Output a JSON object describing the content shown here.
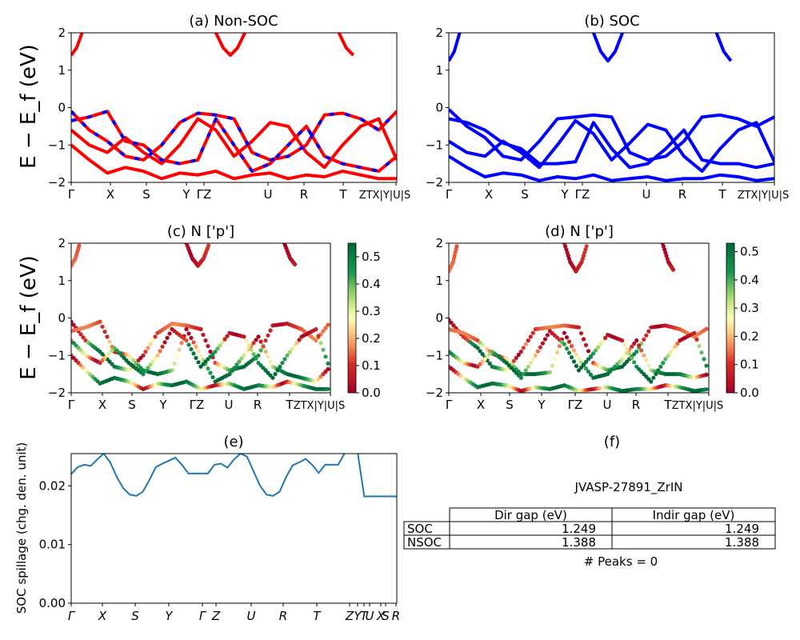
{
  "chart_data": [
    {
      "id": "a",
      "type": "line",
      "title": "(a) Non-SOC",
      "ylabel": "E − E_f (eV)",
      "ylim": [
        -2,
        2
      ],
      "yticks": [
        "−2",
        "−1",
        "0",
        "1",
        "2"
      ],
      "kpath_labels": [
        "Γ",
        "X",
        "S",
        "Y",
        "ΓZ",
        "U",
        "R",
        "T",
        "ZTX|Y|U|S"
      ],
      "legend": "none",
      "series": [
        {
          "color": "#ff0000",
          "style": "solid",
          "x": [
            0,
            0.5,
            1,
            1.5,
            2,
            2.5,
            3,
            3.5,
            4,
            4.5,
            5,
            5.5,
            6,
            6.5,
            7,
            7.5,
            8,
            8.5,
            9
          ],
          "y": [
            -0.1,
            -0.6,
            -0.9,
            -1.3,
            -1.4,
            -1.0,
            -0.4,
            -0.15,
            -0.2,
            -0.3,
            -1.2,
            -1.4,
            -1.3,
            -1.0,
            -0.2,
            -0.15,
            -0.3,
            -0.6,
            -0.1
          ]
        },
        {
          "color": "#ff0000",
          "style": "solid",
          "x": [
            0,
            0.5,
            1,
            1.5,
            2,
            2.5,
            3,
            3.5,
            4,
            4.5,
            5,
            5.5,
            6,
            6.5,
            7,
            7.5,
            8,
            8.5,
            9
          ],
          "y": [
            -0.35,
            -0.25,
            -0.1,
            -0.9,
            -1.0,
            -1.4,
            -1.5,
            -1.4,
            -0.3,
            -1.0,
            -1.7,
            -1.5,
            -1.0,
            -0.5,
            -1.3,
            -1.5,
            -1.6,
            -1.7,
            -1.3
          ]
        },
        {
          "color": "#ff0000",
          "style": "solid",
          "x": [
            0,
            0.5,
            1,
            1.5,
            2,
            2.5,
            3,
            3.5,
            4,
            4.5,
            5,
            5.5,
            6,
            6.5,
            7,
            7.5,
            8,
            8.5,
            9
          ],
          "y": [
            -0.6,
            -1.0,
            -1.2,
            -0.8,
            -1.2,
            -1.5,
            -1.0,
            -0.3,
            -0.6,
            -1.3,
            -0.9,
            -0.4,
            -0.5,
            -1.2,
            -1.6,
            -1.0,
            -0.5,
            -0.3,
            -1.4
          ]
        },
        {
          "color": "#ff0000",
          "style": "solid",
          "x": [
            0,
            0.5,
            1,
            1.5,
            2,
            2.5,
            3,
            3.5,
            4,
            4.5,
            5,
            5.5,
            6,
            6.5,
            7,
            7.5,
            8,
            8.5,
            9
          ],
          "y": [
            -1.0,
            -1.4,
            -1.75,
            -1.6,
            -1.7,
            -1.9,
            -1.75,
            -1.8,
            -1.7,
            -1.9,
            -1.8,
            -1.75,
            -1.9,
            -1.8,
            -1.85,
            -1.7,
            -1.8,
            -1.9,
            -1.9
          ]
        },
        {
          "color": "#ff0000",
          "style": "solid",
          "x": [
            4,
            4.2,
            4.4,
            4.6,
            4.8
          ],
          "y": [
            2.0,
            1.6,
            1.4,
            1.6,
            2.0
          ]
        },
        {
          "color": "#ff0000",
          "style": "solid",
          "x": [
            0,
            0.15,
            0.3
          ],
          "y": [
            1.4,
            1.6,
            2.0
          ]
        },
        {
          "color": "#ff0000",
          "style": "solid",
          "x": [
            7.4,
            7.6,
            7.8
          ],
          "y": [
            2.0,
            1.6,
            1.4
          ]
        },
        {
          "color": "#0000ff",
          "style": "dashed",
          "x": [
            0,
            0.5,
            1,
            1.5,
            2,
            2.5,
            3,
            3.5,
            4,
            4.5,
            5,
            5.5,
            6,
            6.5,
            7,
            7.5,
            8,
            8.5,
            9
          ],
          "y": [
            -0.1,
            -0.6,
            -0.9,
            -1.3,
            -1.4,
            -1.0,
            -0.4,
            -0.15,
            -0.2,
            -0.3,
            -1.2,
            -1.4,
            -1.3,
            -1.0,
            -0.2,
            -0.15,
            -0.3,
            -0.6,
            -0.1
          ]
        },
        {
          "color": "#0000ff",
          "style": "dashed",
          "x": [
            0,
            0.5,
            1,
            1.5,
            2,
            2.5,
            3,
            3.5,
            4,
            4.5,
            5,
            5.5,
            6,
            6.5,
            7,
            7.5,
            8,
            8.5,
            9
          ],
          "y": [
            -0.35,
            -0.25,
            -0.1,
            -0.9,
            -1.0,
            -1.4,
            -1.5,
            -1.4,
            -0.3,
            -1.0,
            -1.7,
            -1.5,
            -1.0,
            -0.5,
            -1.3,
            -1.5,
            -1.6,
            -1.7,
            -1.3
          ]
        }
      ]
    },
    {
      "id": "b",
      "type": "line",
      "title": "(b) SOC",
      "ylim": [
        -2,
        2
      ],
      "yticks": [
        "−2",
        "−1",
        "0",
        "1",
        "2"
      ],
      "kpath_labels": [
        "Γ",
        "X",
        "S",
        "Y",
        "ΓZ",
        "U",
        "R",
        "T",
        "ZTX|Y|U|S"
      ],
      "legend": "none",
      "series": [
        {
          "color": "#0000ff",
          "style": "solid",
          "x": [
            0,
            0.5,
            1,
            1.5,
            2,
            2.5,
            3,
            3.5,
            4,
            4.5,
            5,
            5.5,
            6,
            6.5,
            7,
            7.5,
            8,
            8.5,
            9
          ],
          "y": [
            -0.05,
            -0.5,
            -0.8,
            -1.3,
            -1.4,
            -0.9,
            -0.3,
            -0.25,
            -0.2,
            -0.25,
            -1.2,
            -1.4,
            -1.3,
            -0.9,
            -0.25,
            -0.2,
            -0.3,
            -0.5,
            -0.25
          ]
        },
        {
          "color": "#0000ff",
          "style": "solid",
          "x": [
            0,
            0.5,
            1,
            1.5,
            2,
            2.5,
            3,
            3.5,
            4,
            4.5,
            5,
            5.5,
            6,
            6.5,
            7,
            7.5,
            8,
            8.5,
            9
          ],
          "y": [
            -0.3,
            -0.4,
            -0.6,
            -0.95,
            -1.1,
            -1.5,
            -1.5,
            -1.45,
            -0.4,
            -1.1,
            -1.6,
            -1.5,
            -1.1,
            -0.6,
            -1.4,
            -1.5,
            -1.5,
            -1.6,
            -1.5
          ]
        },
        {
          "color": "#0000ff",
          "style": "solid",
          "x": [
            0,
            0.5,
            1,
            1.5,
            2,
            2.5,
            3,
            3.5,
            4,
            4.5,
            5,
            5.5,
            6,
            6.5,
            7,
            7.5,
            8,
            8.5,
            9
          ],
          "y": [
            -0.9,
            -1.2,
            -1.3,
            -0.9,
            -1.2,
            -1.6,
            -1.0,
            -0.35,
            -0.7,
            -1.4,
            -0.95,
            -0.45,
            -0.6,
            -1.3,
            -1.7,
            -1.1,
            -0.6,
            -0.4,
            -1.45
          ]
        },
        {
          "color": "#0000ff",
          "style": "solid",
          "x": [
            0,
            0.5,
            1,
            1.5,
            2,
            2.5,
            3,
            3.5,
            4,
            4.5,
            5,
            5.5,
            6,
            6.5,
            7,
            7.5,
            8,
            8.5,
            9
          ],
          "y": [
            -1.3,
            -1.6,
            -1.85,
            -1.75,
            -1.8,
            -1.95,
            -1.85,
            -1.9,
            -1.8,
            -1.95,
            -1.9,
            -1.85,
            -1.95,
            -1.9,
            -1.9,
            -1.8,
            -1.85,
            -1.95,
            -1.9
          ]
        },
        {
          "color": "#0000ff",
          "style": "solid",
          "x": [
            4,
            4.2,
            4.4,
            4.6,
            4.8
          ],
          "y": [
            2.0,
            1.5,
            1.25,
            1.5,
            2.0
          ]
        },
        {
          "color": "#0000ff",
          "style": "solid",
          "x": [
            0,
            0.15,
            0.3
          ],
          "y": [
            1.25,
            1.5,
            2.0
          ]
        },
        {
          "color": "#0000ff",
          "style": "solid",
          "x": [
            7.4,
            7.6,
            7.8
          ],
          "y": [
            2.0,
            1.5,
            1.25
          ]
        }
      ]
    },
    {
      "id": "c",
      "type": "scatter",
      "title": "(c)  N ['p']",
      "ylabel": "E − E_f (eV)",
      "ylim": [
        -2,
        2
      ],
      "yticks": [
        "−2",
        "−1",
        "0",
        "1",
        "2"
      ],
      "kpath_labels": [
        "Γ",
        "X",
        "S",
        "Y",
        "ΓZ",
        "U",
        "R",
        "T",
        "ZTX|Y|U|S"
      ],
      "colorbar": {
        "min": 0.0,
        "max": 0.55,
        "ticks": [
          "0.0",
          "0.1",
          "0.2",
          "0.3",
          "0.4",
          "0.5"
        ],
        "colormap": "RdYlGn"
      }
    },
    {
      "id": "d",
      "type": "scatter",
      "title": "(d) N ['p']",
      "ylim": [
        -2,
        2
      ],
      "yticks": [
        "−2",
        "−1",
        "0",
        "1",
        "2"
      ],
      "kpath_labels": [
        "Γ",
        "X",
        "S",
        "Y",
        "ΓZ",
        "U",
        "R",
        "T",
        "ZTX|Y|U|S"
      ],
      "colorbar": {
        "min": 0.0,
        "max": 0.53,
        "ticks": [
          "0.0",
          "0.1",
          "0.2",
          "0.3",
          "0.4",
          "0.5"
        ],
        "colormap": "RdYlGn"
      }
    },
    {
      "id": "e",
      "type": "line",
      "title": "(e)",
      "ylabel": "SOC spillage (chg. den. unit)",
      "ylim": [
        0,
        0.0255
      ],
      "yticks": [
        "0.00",
        "0.01",
        "0.02"
      ],
      "xticks": [
        "Γ",
        "X",
        "S",
        "Y",
        "Γ",
        "Z",
        "U",
        "R",
        "T",
        "Z",
        "Y",
        "T",
        "U",
        "X",
        "S",
        "R"
      ],
      "series": [
        {
          "color": "#1f77b4",
          "x": [
            0,
            0.2,
            0.4,
            0.6,
            0.8,
            1.0,
            1.2,
            1.4,
            1.6,
            1.8,
            2.0,
            2.2,
            2.4,
            2.6,
            2.8,
            3.0,
            3.2,
            3.4,
            3.6,
            3.8,
            4.0,
            4.2,
            4.4,
            4.6,
            4.8,
            5.0,
            5.2,
            5.4,
            5.6,
            5.8,
            6.0,
            6.2,
            6.4,
            6.6,
            6.8,
            7.0,
            7.2,
            7.4,
            7.6,
            7.8,
            8.0,
            8.2,
            8.4,
            8.6,
            8.8,
            9.0,
            9.2,
            9.4,
            9.6,
            9.8,
            10.0
          ],
          "y": [
            0.022,
            0.0232,
            0.0236,
            0.0234,
            0.0245,
            0.0255,
            0.024,
            0.0215,
            0.0196,
            0.0185,
            0.0183,
            0.019,
            0.021,
            0.0232,
            0.0238,
            0.0243,
            0.0248,
            0.0236,
            0.0221,
            0.0221,
            0.0221,
            0.0221,
            0.0236,
            0.0238,
            0.0231,
            0.0245,
            0.0255,
            0.025,
            0.0225,
            0.02,
            0.0185,
            0.0183,
            0.019,
            0.0215,
            0.0235,
            0.024,
            0.0246,
            0.0236,
            0.0222,
            0.0236,
            0.0236,
            0.0236,
            0.0256,
            0.0256,
            0.0256,
            0.0182,
            0.0182,
            0.0182,
            0.0182,
            0.0182,
            0.0182
          ]
        }
      ]
    },
    {
      "id": "f",
      "type": "table",
      "title": "(f)",
      "subtitle": "JVASP-27891_ZrIN",
      "columns": [
        "Dir gap (eV)",
        "Indir gap (eV)"
      ],
      "rows": [
        {
          "label": "SOC",
          "values": [
            "1.249",
            "1.249"
          ]
        },
        {
          "label": "NSOC",
          "values": [
            "1.388",
            "1.388"
          ]
        }
      ],
      "footer": "# Peaks = 0"
    }
  ]
}
